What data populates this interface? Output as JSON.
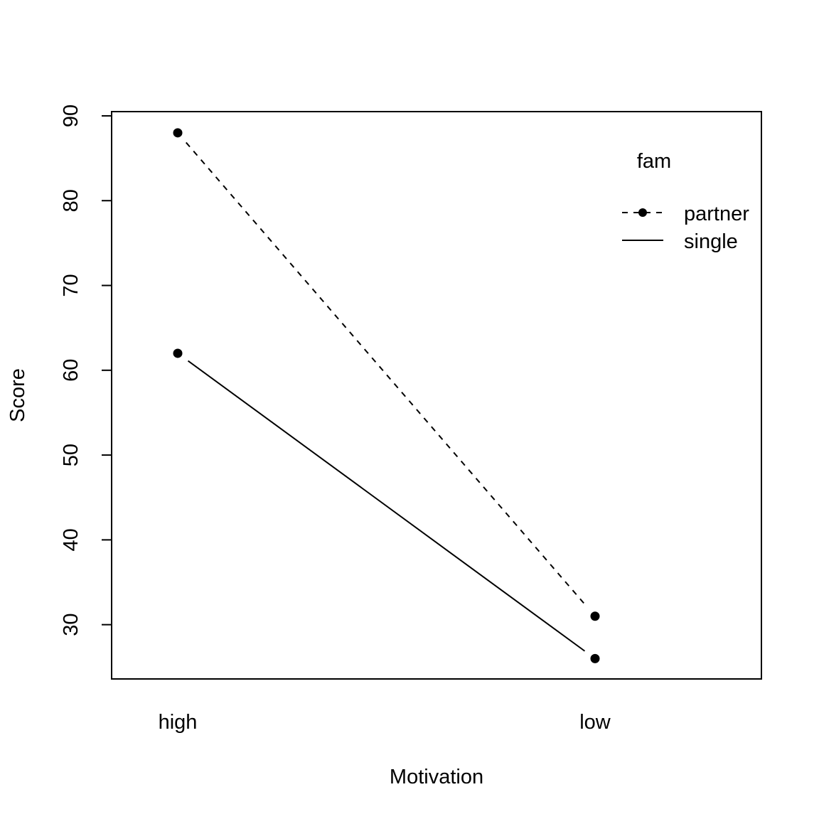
{
  "chart_data": {
    "type": "line",
    "title": "",
    "xlabel": "Motivation",
    "ylabel": "Score",
    "categories": [
      "high",
      "low"
    ],
    "ylim": [
      23.6,
      90.5
    ],
    "yticks": [
      30,
      40,
      50,
      60,
      70,
      80,
      90
    ],
    "grid": false,
    "legend": {
      "title": "fam",
      "placement": "top-right",
      "entries": [
        "partner",
        "single"
      ]
    },
    "series": [
      {
        "name": "partner",
        "values": [
          88,
          31
        ],
        "linestyle": "dashed",
        "color": "#000000"
      },
      {
        "name": "single",
        "values": [
          62,
          26
        ],
        "linestyle": "solid",
        "color": "#000000"
      }
    ]
  }
}
